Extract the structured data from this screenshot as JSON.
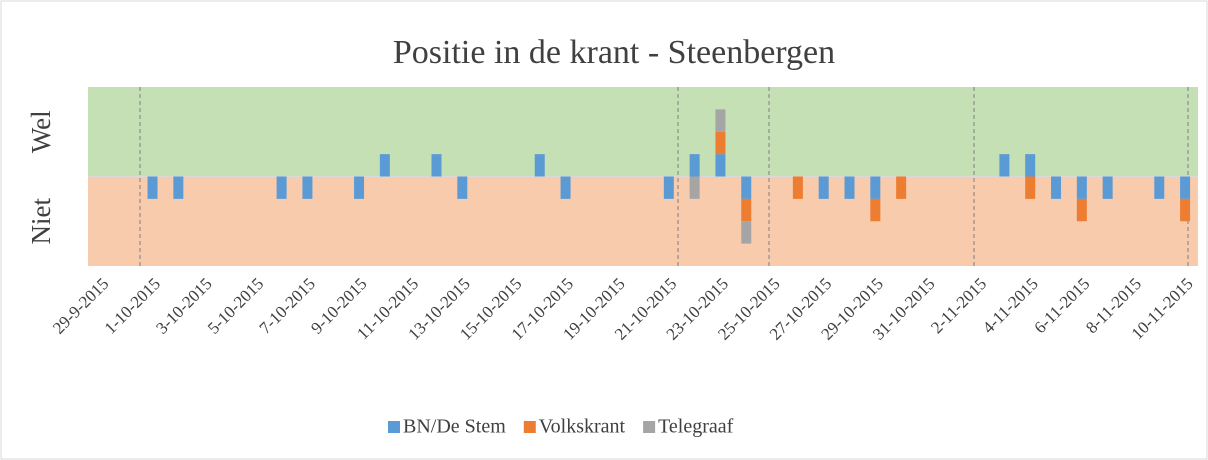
{
  "chart_data": {
    "type": "stacked-bar",
    "title": "Positie in de krant - Steenbergen",
    "categories": [
      "29-9-2015",
      null,
      "1-10-2015",
      null,
      "3-10-2015",
      null,
      "5-10-2015",
      null,
      "7-10-2015",
      null,
      "9-10-2015",
      null,
      "11-10-2015",
      null,
      "13-10-2015",
      null,
      "15-10-2015",
      null,
      "17-10-2015",
      null,
      "19-10-2015",
      null,
      "21-10-2015",
      null,
      "23-10-2015",
      null,
      "25-10-2015",
      null,
      "27-10-2015",
      null,
      "29-10-2015",
      null,
      "31-10-2015",
      null,
      "2-11-2015",
      null,
      "4-11-2015",
      null,
      "6-11-2015",
      null,
      "8-11-2015",
      null,
      "10-11-2015"
    ],
    "series": [
      {
        "name": "BN/De Stem",
        "color": "#5b9bd5",
        "values": [
          null,
          null,
          -1,
          -1,
          null,
          null,
          null,
          -1,
          -1,
          null,
          -1,
          1,
          null,
          1,
          -1,
          null,
          null,
          1,
          -1,
          null,
          null,
          null,
          -1,
          1,
          1,
          -1,
          null,
          null,
          -1,
          -1,
          -1,
          null,
          null,
          null,
          null,
          1,
          1,
          -1,
          -1,
          -1,
          null,
          -1,
          -1
        ]
      },
      {
        "name": "Volkskrant",
        "color": "#ed7d31",
        "values": [
          null,
          null,
          null,
          null,
          null,
          null,
          null,
          null,
          null,
          null,
          null,
          null,
          null,
          null,
          null,
          null,
          null,
          null,
          null,
          null,
          null,
          null,
          null,
          null,
          1,
          -1,
          null,
          -1,
          null,
          null,
          -1,
          -1,
          null,
          null,
          null,
          null,
          -1,
          null,
          -1,
          null,
          null,
          null,
          -1
        ]
      },
      {
        "name": "Telegraaf",
        "color": "#a5a5a5",
        "values": [
          null,
          null,
          null,
          null,
          null,
          null,
          null,
          null,
          null,
          null,
          null,
          null,
          null,
          null,
          null,
          null,
          null,
          null,
          null,
          null,
          null,
          null,
          null,
          -1,
          1,
          -1,
          null,
          null,
          null,
          null,
          null,
          null,
          null,
          null,
          null,
          null,
          null,
          null,
          null,
          null,
          null,
          null,
          null
        ]
      }
    ],
    "ylim": [
      -4,
      4
    ],
    "yticks": [
      {
        "value": 2,
        "label": "Wel"
      },
      {
        "value": -2,
        "label": "Niet"
      }
    ],
    "bands": [
      {
        "from": 0,
        "to": 4,
        "color": "#c5e0b4"
      },
      {
        "from": -4,
        "to": 0,
        "color": "#f8cbad"
      }
    ],
    "legend": "bottom"
  }
}
